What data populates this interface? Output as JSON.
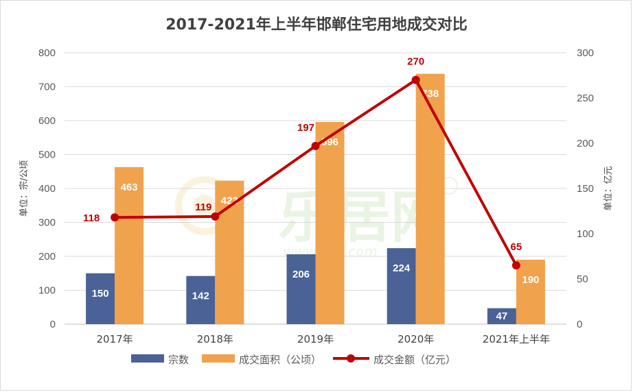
{
  "chart_data": {
    "type": "bar",
    "title": "2017-2021年上半年邯郸住宅用地成交对比",
    "categories": [
      "2017年",
      "2018年",
      "2019年",
      "2020年",
      "2021年上半年"
    ],
    "series": [
      {
        "name": "宗数",
        "type": "bar",
        "axis": "left",
        "color": "#4a6296",
        "values": [
          150,
          142,
          206,
          224,
          47
        ]
      },
      {
        "name": "成交面积（公顷）",
        "type": "bar",
        "axis": "left",
        "color": "#f0a24d",
        "values": [
          463,
          423,
          596,
          738,
          190
        ]
      },
      {
        "name": "成交金额（亿元）",
        "type": "line",
        "axis": "right",
        "color": "#c00000",
        "values": [
          118,
          119,
          197,
          270,
          65
        ]
      }
    ],
    "ylabel_left": "单位：宗/公顷",
    "ylabel_right": "单位：亿元",
    "ylim_left": [
      0,
      800
    ],
    "yticks_left": [
      0,
      100,
      200,
      300,
      400,
      500,
      600,
      700,
      800
    ],
    "ylim_right": [
      0,
      300
    ],
    "yticks_right": [
      0,
      50,
      100,
      150,
      200,
      250,
      300
    ],
    "grid": true,
    "legend_position": "bottom"
  },
  "watermark": {
    "text": "乐居网",
    "url_text": "www.Ljia.com"
  }
}
